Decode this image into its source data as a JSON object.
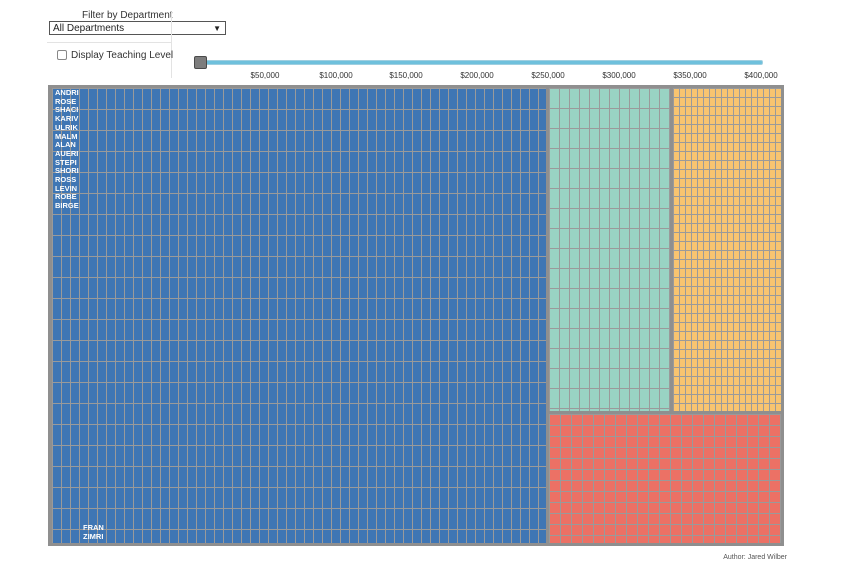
{
  "filter": {
    "label": "Filter by Department",
    "selected": "All Departments"
  },
  "teaching": {
    "label": "Display Teaching Level",
    "checked": false
  },
  "slider": {
    "ticks": [
      "$50,000",
      "$100,000",
      "$150,000",
      "$200,000",
      "$250,000",
      "$300,000",
      "$350,000",
      "$400,000"
    ],
    "value": 0
  },
  "treemap": {
    "colors": {
      "blue": "#3f76b4",
      "teal": "#99d3c3",
      "orange": "#f8c470",
      "red": "#ec7165",
      "cell_border": "#9a9a9a",
      "frame": "#8f8f8f"
    },
    "top_labels": [
      "ANDRI",
      "ROSE",
      "SHACI",
      "KARIV",
      "ULRIK",
      "MALM",
      "ALAN",
      "AUERI",
      "STEPI",
      "SHORI",
      "ROSS",
      "LEVIN",
      "ROBE",
      "BIRGE"
    ],
    "bottom_labels": [
      "FRAN",
      "ZIMRI"
    ]
  },
  "footer": {
    "author": "Author: Jared Wilber"
  }
}
